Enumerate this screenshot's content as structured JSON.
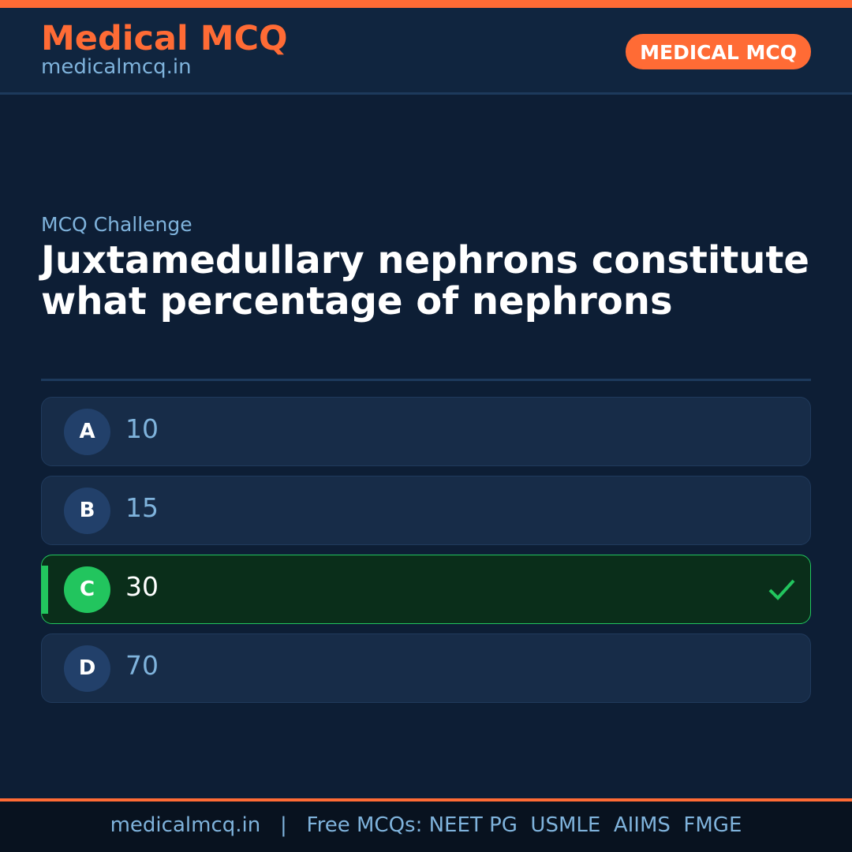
{
  "header": {
    "brand": "Medical MCQ",
    "site": "medicalmcq.in",
    "badge": "MEDICAL MCQ"
  },
  "kicker": "MCQ Challenge",
  "question": "Juxtamedullary nephrons constitute what percentage of nephrons",
  "options": [
    {
      "letter": "A",
      "text": "10"
    },
    {
      "letter": "B",
      "text": "15"
    },
    {
      "letter": "C",
      "text": "30",
      "correct": true
    },
    {
      "letter": "D",
      "text": "70"
    }
  ],
  "footer": "medicalmcq.in   |   Free MCQs: NEET PG  USMLE  AIIMS  FMGE",
  "colors": {
    "accent": "#ff6b35",
    "correct": "#22c55e",
    "background": "#0d1e35"
  },
  "icons": {
    "correct": "checkmark-icon"
  }
}
